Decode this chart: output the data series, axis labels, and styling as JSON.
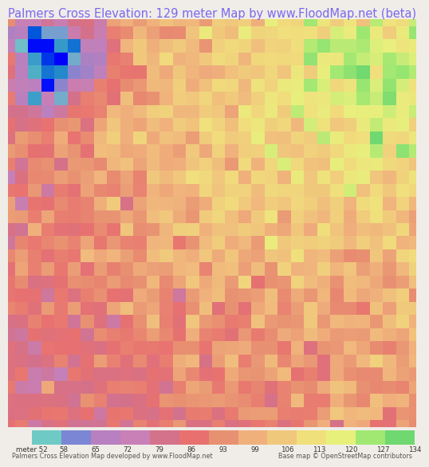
{
  "title": "Palmers Cross Elevation: 129 meter Map by www.FloodMap.net (beta)",
  "title_color": "#7B68EE",
  "title_fontsize": 10.5,
  "background_color": "#F0EDE8",
  "colorbar_labels": [
    "meter 52",
    "58",
    "65",
    "72",
    "79",
    "86",
    "93",
    "99",
    "106",
    "113",
    "120",
    "127",
    "134"
  ],
  "colorbar_colors": [
    "#6ECAC5",
    "#7B86D4",
    "#B880C0",
    "#C880B6",
    "#D4718B",
    "#E87170",
    "#E89172",
    "#F0B07C",
    "#F0C87C",
    "#F0E07C",
    "#E8F07C",
    "#A0E872",
    "#70D870"
  ],
  "footer_left": "Palmers Cross Elevation Map developed by www.FloodMap.net",
  "footer_right": "Base map © OpenStreetMap contributors"
}
